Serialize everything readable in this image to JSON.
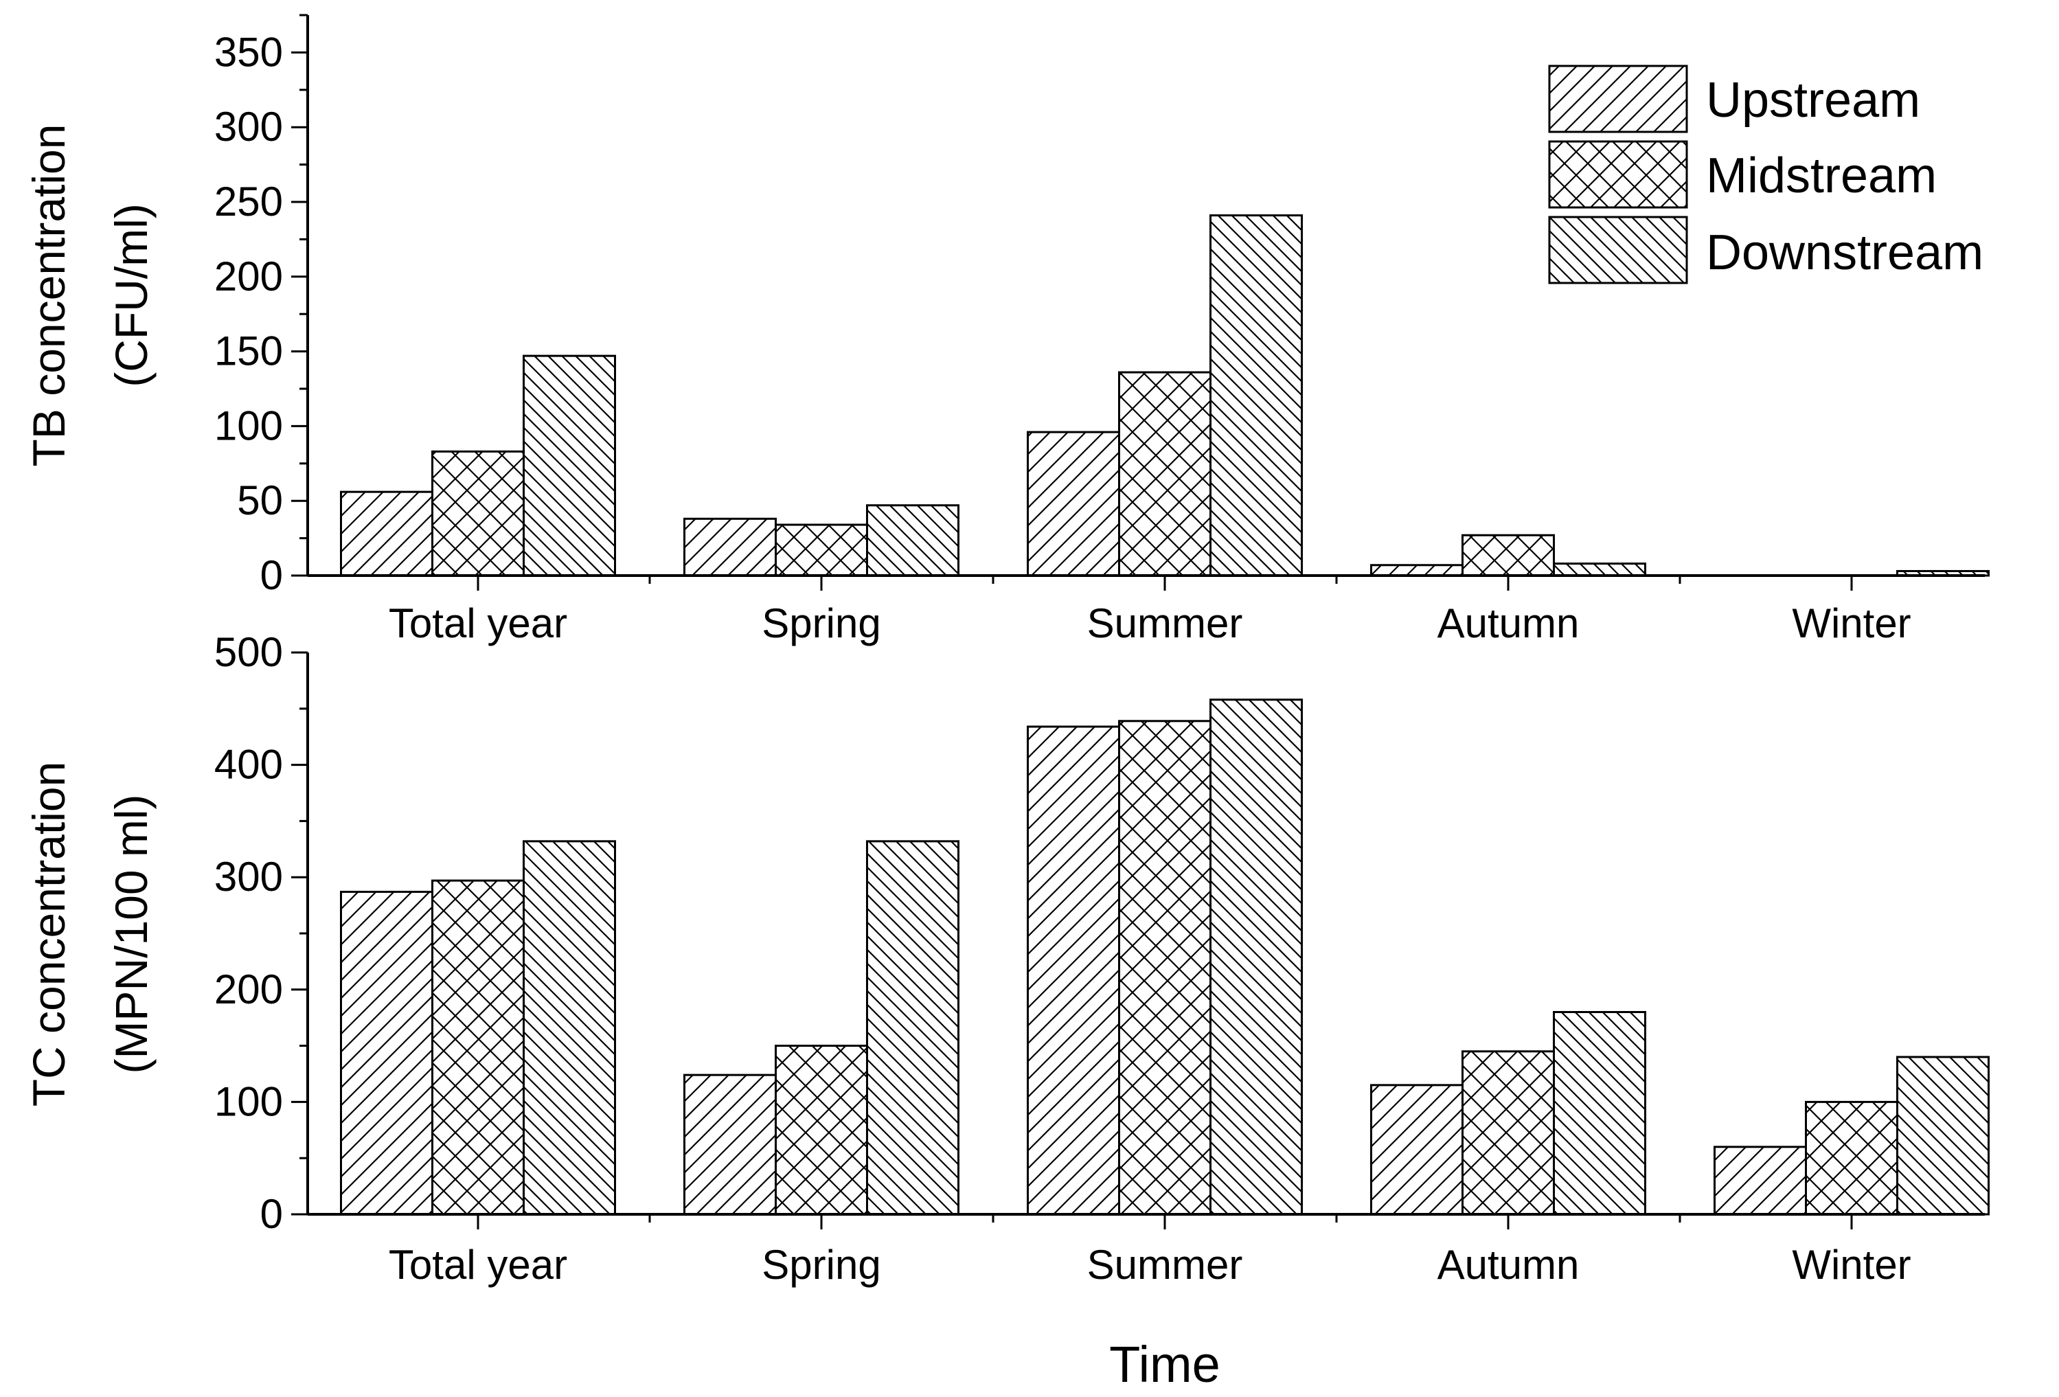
{
  "chart_data": [
    {
      "type": "bar",
      "ylabel": "TB concentration",
      "ylabel_unit": "(CFU/ml)",
      "xlabel": "",
      "categories": [
        "Total year",
        "Spring",
        "Summer",
        "Autumn",
        "Winter"
      ],
      "ylim": [
        0,
        375
      ],
      "yticks": [
        0,
        50,
        100,
        150,
        200,
        250,
        300,
        350
      ],
      "series": [
        {
          "name": "Upstream",
          "values": [
            56,
            38,
            96,
            7,
            0
          ]
        },
        {
          "name": "Midstream",
          "values": [
            83,
            34,
            136,
            27,
            0
          ]
        },
        {
          "name": "Downstream",
          "values": [
            147,
            47,
            241,
            8,
            3
          ]
        }
      ],
      "legend": "top-right",
      "grid": false
    },
    {
      "type": "bar",
      "ylabel": "TC concentration",
      "ylabel_unit": "(MPN/100 ml)",
      "xlabel": "Time",
      "categories": [
        "Total year",
        "Spring",
        "Summer",
        "Autumn",
        "Winter"
      ],
      "ylim": [
        0,
        500
      ],
      "yticks": [
        0,
        100,
        200,
        300,
        400,
        500
      ],
      "series": [
        {
          "name": "Upstream",
          "values": [
            287,
            124,
            434,
            115,
            60
          ]
        },
        {
          "name": "Midstream",
          "values": [
            297,
            150,
            439,
            145,
            100
          ]
        },
        {
          "name": "Downstream",
          "values": [
            332,
            332,
            458,
            180,
            140
          ]
        }
      ],
      "legend": "none",
      "grid": false
    }
  ],
  "legend_entries": [
    "Upstream",
    "Midstream",
    "Downstream"
  ]
}
